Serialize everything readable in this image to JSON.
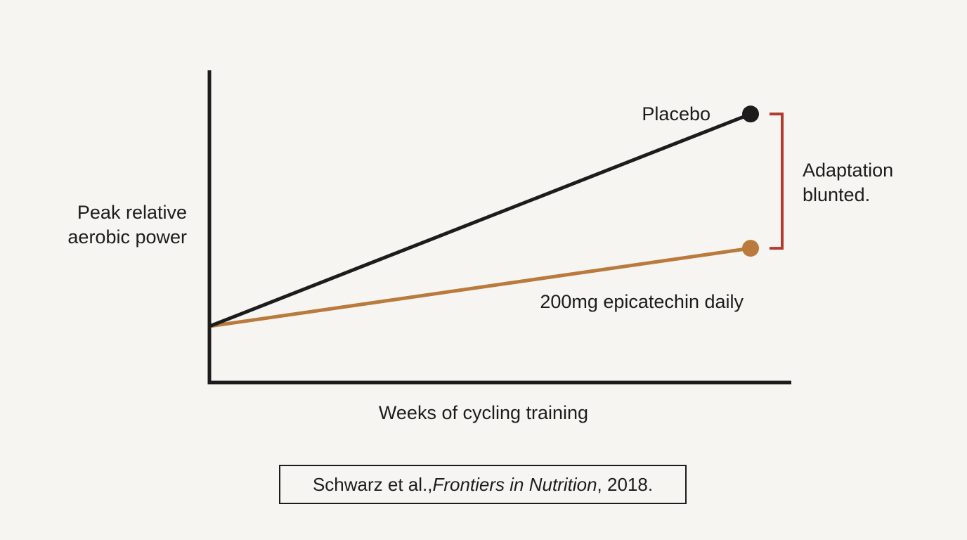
{
  "colors": {
    "background": "#f6f5f2",
    "axis": "#1c1c1c",
    "placebo": "#1c1c1c",
    "epicatechin": "#b97a3c",
    "bracket": "#b23b2e"
  },
  "chart_data": {
    "type": "line",
    "title": "",
    "xlabel": "Weeks of cycling training",
    "ylabel_lines": [
      "Peak relative",
      "aerobic power"
    ],
    "xlim": [
      0,
      1
    ],
    "ylim": [
      0,
      1
    ],
    "grid": false,
    "axis_ticks": false,
    "series": [
      {
        "name": "Placebo",
        "color": "#1c1c1c",
        "x": [
          0,
          1
        ],
        "y": [
          0.18,
          0.86
        ],
        "end_marker": true
      },
      {
        "name": "200mg epicatechin daily",
        "color": "#b97a3c",
        "x": [
          0,
          1
        ],
        "y": [
          0.18,
          0.43
        ],
        "end_marker": true
      }
    ],
    "annotations": [
      {
        "type": "bracket",
        "from_series": 0,
        "to_series": 1,
        "color": "#b23b2e",
        "text_lines": [
          "Adaptation",
          "blunted."
        ]
      }
    ]
  },
  "citation": {
    "prefix": "Schwarz et al., ",
    "journal": "Frontiers in Nutrition",
    "suffix": ", 2018."
  }
}
